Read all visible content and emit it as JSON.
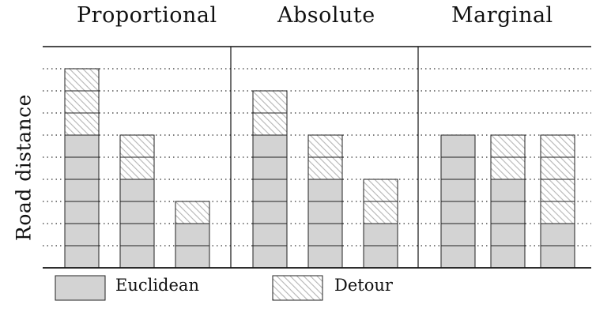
{
  "chart_data": {
    "type": "bar",
    "stacked": true,
    "ylabel": "Road distance",
    "ylim": [
      0,
      9
    ],
    "grid": "dotted horizontal",
    "legend_position": "bottom",
    "series": [
      {
        "name": "Euclidean",
        "color": "#d3d3d3",
        "pattern": "solid"
      },
      {
        "name": "Detour",
        "color": "#ffffff",
        "pattern": "hatched"
      }
    ],
    "panels": [
      {
        "title": "Proportional",
        "bars": [
          {
            "euclidean": 6,
            "detour": 3
          },
          {
            "euclidean": 4,
            "detour": 2
          },
          {
            "euclidean": 2,
            "detour": 1
          }
        ]
      },
      {
        "title": "Absolute",
        "bars": [
          {
            "euclidean": 6,
            "detour": 2
          },
          {
            "euclidean": 4,
            "detour": 2
          },
          {
            "euclidean": 2,
            "detour": 2
          }
        ]
      },
      {
        "title": "Marginal",
        "bars": [
          {
            "euclidean": 6,
            "detour": 0
          },
          {
            "euclidean": 4,
            "detour": 2
          },
          {
            "euclidean": 2,
            "detour": 4
          }
        ]
      }
    ]
  },
  "legend": {
    "euclidean_label": "Euclidean",
    "detour_label": "Detour"
  }
}
